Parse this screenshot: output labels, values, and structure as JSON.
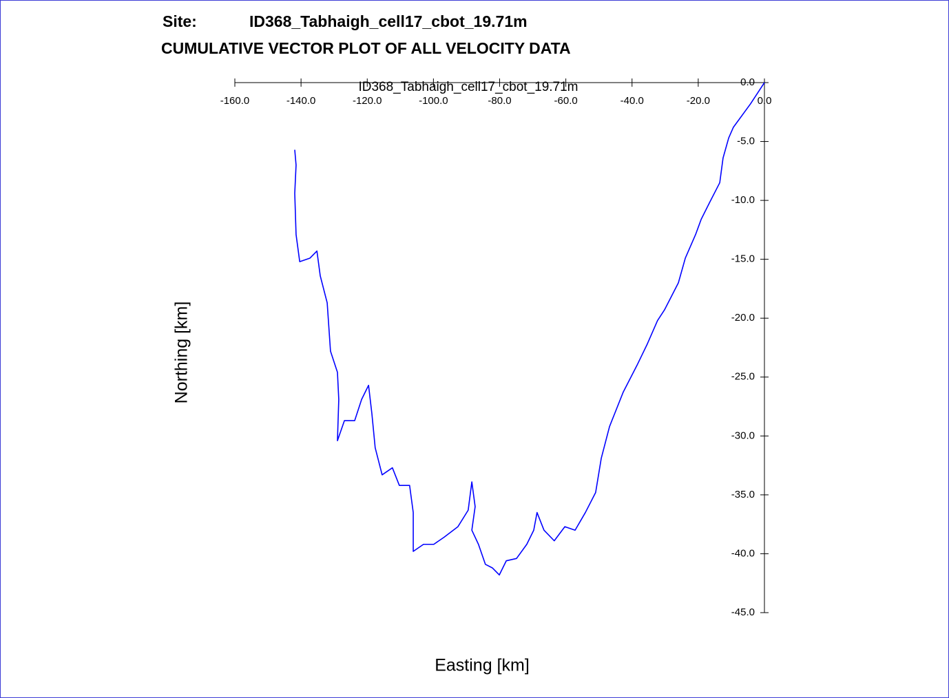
{
  "chart_data": {
    "type": "line",
    "site_label": "Site:",
    "site_name": "ID368_Tabhaigh_cell17_cbot_19.71m",
    "title": "CUMULATIVE VECTOR PLOT OF ALL VELOCITY DATA",
    "plot_title": "ID368_Tabhaigh_cell17_cbot_19.71m",
    "x_label": "Easting [km]",
    "y_label": "Northing [km]",
    "xlim": [
      -160,
      0
    ],
    "ylim": [
      -45,
      0
    ],
    "xticks": [
      {
        "value": -160,
        "label": "-160.0"
      },
      {
        "value": -140,
        "label": "-140.0"
      },
      {
        "value": -120,
        "label": "-120.0"
      },
      {
        "value": -100,
        "label": "-100.0"
      },
      {
        "value": -80,
        "label": "-80.0"
      },
      {
        "value": -60,
        "label": "-60.0"
      },
      {
        "value": -40,
        "label": "-40.0"
      },
      {
        "value": -20,
        "label": "-20.0"
      },
      {
        "value": 0,
        "label": "0.0"
      }
    ],
    "yticks": [
      {
        "value": 0,
        "label": "0.0"
      },
      {
        "value": -5,
        "label": "-5.0"
      },
      {
        "value": -10,
        "label": "-10.0"
      },
      {
        "value": -15,
        "label": "-15.0"
      },
      {
        "value": -20,
        "label": "-20.0"
      },
      {
        "value": -25,
        "label": "-25.0"
      },
      {
        "value": -30,
        "label": "-30.0"
      },
      {
        "value": -35,
        "label": "-35.0"
      },
      {
        "value": -40,
        "label": "-40.0"
      },
      {
        "value": -45,
        "label": "-45.0"
      }
    ],
    "series": [
      {
        "color": "#0000ff",
        "x": [
          0,
          -4.2,
          -9.4,
          -10.8,
          -12.5,
          -13.5,
          -16.6,
          -19.1,
          -20.8,
          -23.9,
          -26.0,
          -30.2,
          -32.3,
          -35.4,
          -38.5,
          -42.7,
          -46.8,
          -49.3,
          -51.0,
          -54.1,
          -57.2,
          -60.3,
          -63.5,
          -66.6,
          -68.7,
          -69.7,
          -71.8,
          -74.9,
          -78.0,
          -80.1,
          -82.2,
          -84.3,
          -86.4,
          -88.4,
          -87.4,
          -88.4,
          -89.5,
          -92.6,
          -96.8,
          -99.9,
          -103.0,
          -106.1,
          -106.1,
          -107.2,
          -110.3,
          -112.4,
          -115.5,
          -117.6,
          -118.6,
          -119.6,
          -121.7,
          -123.8,
          -126.9,
          -129.0,
          -128.6,
          -129.0,
          -131.1,
          -132.1,
          -134.2,
          -135.2,
          -137.3,
          -140.4,
          -141.5,
          -141.9,
          -141.5,
          -141.9
        ],
        "values": [
          0,
          -1.8,
          -3.8,
          -4.7,
          -6.4,
          -8.5,
          -10.2,
          -11.6,
          -12.9,
          -14.9,
          -17.0,
          -19.3,
          -20.2,
          -22.2,
          -24.0,
          -26.3,
          -29.2,
          -31.9,
          -34.8,
          -36.5,
          -38.0,
          -37.7,
          -38.9,
          -38.0,
          -36.5,
          -38.0,
          -39.2,
          -40.4,
          -40.6,
          -41.8,
          -41.2,
          -40.9,
          -39.2,
          -38.0,
          -36.0,
          -33.9,
          -36.3,
          -37.7,
          -38.6,
          -39.2,
          -39.2,
          -39.8,
          -36.5,
          -34.2,
          -34.2,
          -32.7,
          -33.3,
          -31.0,
          -28.1,
          -25.7,
          -26.9,
          -28.7,
          -28.7,
          -30.4,
          -26.9,
          -24.6,
          -22.8,
          -18.7,
          -16.4,
          -14.3,
          -14.9,
          -15.2,
          -12.9,
          -9.4,
          -7.0,
          -5.7
        ]
      }
    ]
  }
}
